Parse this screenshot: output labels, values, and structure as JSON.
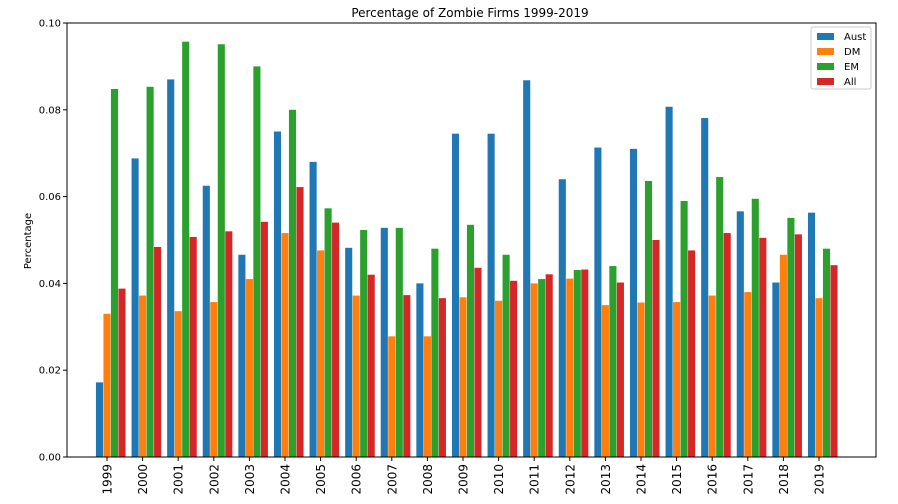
{
  "chart_data": {
    "type": "bar",
    "title": "Percentage of Zombie Firms 1999-2019",
    "xlabel": "",
    "ylabel": "Percentage",
    "ylim": [
      0,
      0.1
    ],
    "yticks": [
      "0.00",
      "0.02",
      "0.04",
      "0.06",
      "0.08",
      "0.10"
    ],
    "legend_position": "top-right",
    "categories": [
      "1999",
      "2000",
      "2001",
      "2002",
      "2003",
      "2004",
      "2005",
      "2006",
      "2007",
      "2008",
      "2009",
      "2010",
      "2011",
      "2012",
      "2013",
      "2014",
      "2015",
      "2016",
      "2017",
      "2018",
      "2019"
    ],
    "series": [
      {
        "name": "Aust",
        "color": "#1f77b4",
        "values": [
          0.0172,
          0.0688,
          0.087,
          0.0625,
          0.0466,
          0.075,
          0.068,
          0.0482,
          0.0528,
          0.04,
          0.0745,
          0.0745,
          0.0868,
          0.064,
          0.0713,
          0.071,
          0.0807,
          0.0781,
          0.0566,
          0.0402,
          0.0563
        ]
      },
      {
        "name": "DM",
        "color": "#ff7f0e",
        "values": [
          0.033,
          0.0372,
          0.0336,
          0.0357,
          0.041,
          0.0516,
          0.0476,
          0.0372,
          0.0278,
          0.0278,
          0.0368,
          0.036,
          0.04,
          0.0411,
          0.035,
          0.0356,
          0.0357,
          0.0372,
          0.038,
          0.0466,
          0.0366
        ]
      },
      {
        "name": "EM",
        "color": "#2ca02c",
        "values": [
          0.0848,
          0.0853,
          0.0957,
          0.0951,
          0.09,
          0.08,
          0.0573,
          0.0523,
          0.0528,
          0.048,
          0.0535,
          0.0466,
          0.041,
          0.0431,
          0.044,
          0.0636,
          0.059,
          0.0645,
          0.0595,
          0.0551,
          0.048
        ]
      },
      {
        "name": "All",
        "color": "#d62728",
        "values": [
          0.0388,
          0.0484,
          0.0507,
          0.052,
          0.0542,
          0.0622,
          0.054,
          0.042,
          0.0373,
          0.0366,
          0.0436,
          0.0406,
          0.0421,
          0.0432,
          0.0402,
          0.05,
          0.0476,
          0.0516,
          0.0505,
          0.0513,
          0.0442
        ]
      }
    ]
  }
}
